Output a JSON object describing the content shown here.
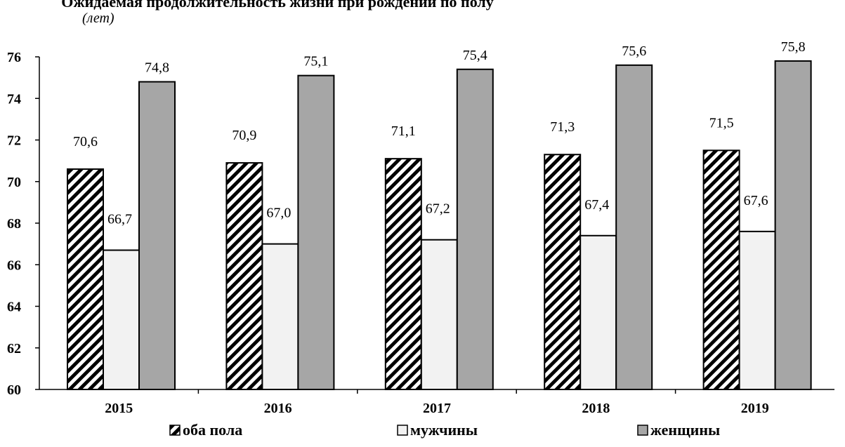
{
  "chart_data": {
    "type": "bar",
    "title": "Ожидаемая продолжительность жизни при рождении по полу",
    "subtitle": "(лет)",
    "categories": [
      "2015",
      "2016",
      "2017",
      "2018",
      "2019"
    ],
    "series": [
      {
        "name": "оба пола",
        "values": [
          70.6,
          70.9,
          71.1,
          71.3,
          71.5
        ],
        "labels": [
          "70,6",
          "70,9",
          "71,1",
          "71,3",
          "71,5"
        ],
        "fill": "hatch",
        "color": "#000000"
      },
      {
        "name": "мужчины",
        "values": [
          66.7,
          67.0,
          67.2,
          67.4,
          67.6
        ],
        "labels": [
          "66,7",
          "67,0",
          "67,2",
          "67,4",
          "67,6"
        ],
        "fill": "solid",
        "color": "#f2f2f2"
      },
      {
        "name": "женщины",
        "values": [
          74.8,
          75.1,
          75.4,
          75.6,
          75.8
        ],
        "labels": [
          "74,8",
          "75,1",
          "75,4",
          "75,6",
          "75,8"
        ],
        "fill": "solid",
        "color": "#a6a6a6"
      }
    ],
    "ylim": [
      60,
      76
    ],
    "yticks": [
      60,
      62,
      64,
      66,
      68,
      70,
      72,
      74,
      76
    ],
    "grid": false,
    "legend": "bottom"
  }
}
